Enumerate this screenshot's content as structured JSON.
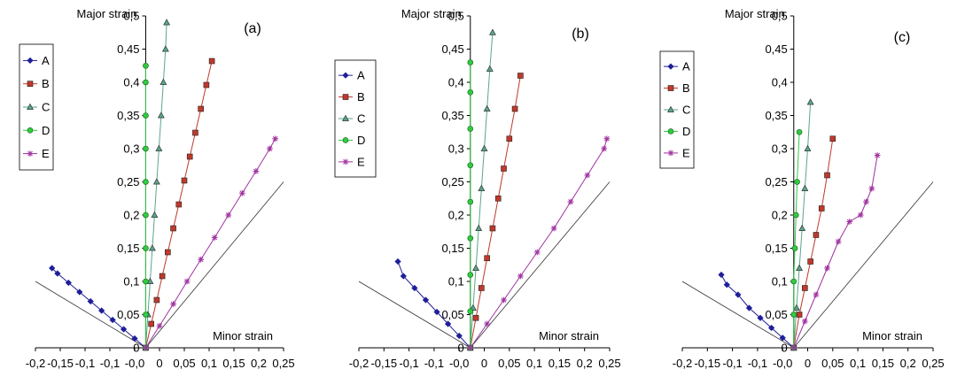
{
  "chart_data": [
    {
      "type": "line",
      "panel_label": "(a)",
      "ylabel": "Major strain",
      "xlabel": "Minor strain",
      "xlim": [
        -0.2,
        0.25
      ],
      "ylim": [
        0,
        0.5
      ],
      "x_ticks": [
        "-0,2",
        "-0,15",
        "-0,1",
        "-0,1",
        "-0,0",
        "0",
        "0,05",
        "0,1",
        "0,15",
        "0,2",
        "0,25"
      ],
      "y_ticks": [
        "0",
        "0,05",
        "0,1",
        "0,15",
        "0,2",
        "0,25",
        "0,3",
        "0,35",
        "0,4",
        "0,45",
        "0,5"
      ],
      "grid": false,
      "legend_placement": "top-left",
      "reference_lines": [
        {
          "x": [
            0,
            -0.2
          ],
          "y": [
            0,
            0.1
          ]
        },
        {
          "x": [
            0,
            0.25
          ],
          "y": [
            0,
            0.25
          ]
        }
      ],
      "series": [
        {
          "name": "A",
          "marker": "diamond",
          "color": "#1f1f9a",
          "x": [
            0,
            -0.02,
            -0.04,
            -0.06,
            -0.08,
            -0.1,
            -0.12,
            -0.14,
            -0.16,
            -0.17
          ],
          "y": [
            0,
            0.014,
            0.028,
            0.042,
            0.056,
            0.07,
            0.084,
            0.098,
            0.112,
            0.12
          ]
        },
        {
          "name": "B",
          "marker": "square",
          "color": "#c0392b",
          "x": [
            0,
            0.01,
            0.02,
            0.03,
            0.04,
            0.05,
            0.06,
            0.07,
            0.08,
            0.09,
            0.1,
            0.11,
            0.12
          ],
          "y": [
            0,
            0.036,
            0.072,
            0.108,
            0.144,
            0.18,
            0.216,
            0.252,
            0.288,
            0.324,
            0.36,
            0.396,
            0.432
          ]
        },
        {
          "name": "C",
          "marker": "triangle",
          "color": "#5aa58a",
          "x": [
            0,
            0.004,
            0.008,
            0.012,
            0.016,
            0.02,
            0.024,
            0.028,
            0.032,
            0.036,
            0.038
          ],
          "y": [
            0,
            0.05,
            0.1,
            0.15,
            0.2,
            0.25,
            0.3,
            0.35,
            0.4,
            0.45,
            0.49
          ]
        },
        {
          "name": "D",
          "marker": "circle",
          "color": "#2ecc40",
          "x": [
            0,
            0,
            0,
            0,
            0,
            0,
            0,
            0,
            0,
            0
          ],
          "y": [
            0,
            0.05,
            0.1,
            0.15,
            0.2,
            0.25,
            0.3,
            0.35,
            0.4,
            0.425
          ]
        },
        {
          "name": "E",
          "marker": "star",
          "color": "#a032a0",
          "x": [
            0,
            0.025,
            0.05,
            0.075,
            0.1,
            0.125,
            0.15,
            0.175,
            0.2,
            0.225,
            0.235
          ],
          "y": [
            0,
            0.033,
            0.066,
            0.1,
            0.133,
            0.166,
            0.2,
            0.233,
            0.266,
            0.3,
            0.315
          ]
        }
      ]
    },
    {
      "type": "line",
      "panel_label": "(b)",
      "ylabel": "Major strain",
      "xlabel": "Minor strain",
      "xlim": [
        -0.2,
        0.25
      ],
      "ylim": [
        0,
        0.5
      ],
      "x_ticks": [
        "-0,2",
        "-0,15",
        "-0,1",
        "-0,1",
        "-0,0",
        "0",
        "0,05",
        "0,1",
        "0,15",
        "0,2",
        "0,25"
      ],
      "y_ticks": [
        "0",
        "0,05",
        "0,1",
        "0,15",
        "0,2",
        "0,25",
        "0,3",
        "0,35",
        "0,4",
        "0,45",
        "0,5"
      ],
      "grid": false,
      "legend_placement": "top-left",
      "reference_lines": [
        {
          "x": [
            0,
            -0.2
          ],
          "y": [
            0,
            0.1
          ]
        },
        {
          "x": [
            0,
            0.25
          ],
          "y": [
            0,
            0.25
          ]
        }
      ],
      "series": [
        {
          "name": "A",
          "marker": "diamond",
          "color": "#1f1f9a",
          "x": [
            0,
            -0.02,
            -0.04,
            -0.06,
            -0.08,
            -0.1,
            -0.12,
            -0.13
          ],
          "y": [
            0,
            0.018,
            0.036,
            0.054,
            0.072,
            0.09,
            0.108,
            0.13
          ]
        },
        {
          "name": "B",
          "marker": "square",
          "color": "#c0392b",
          "x": [
            0,
            0.01,
            0.02,
            0.03,
            0.04,
            0.05,
            0.06,
            0.07,
            0.08,
            0.09
          ],
          "y": [
            0,
            0.045,
            0.09,
            0.135,
            0.18,
            0.225,
            0.27,
            0.315,
            0.36,
            0.41
          ]
        },
        {
          "name": "C",
          "marker": "triangle",
          "color": "#5aa58a",
          "x": [
            0,
            0.005,
            0.01,
            0.015,
            0.02,
            0.025,
            0.03,
            0.035,
            0.04
          ],
          "y": [
            0,
            0.06,
            0.12,
            0.18,
            0.24,
            0.3,
            0.36,
            0.42,
            0.475
          ]
        },
        {
          "name": "D",
          "marker": "circle",
          "color": "#2ecc40",
          "x": [
            0,
            0,
            0,
            0,
            0,
            0,
            0,
            0,
            0
          ],
          "y": [
            0,
            0.055,
            0.11,
            0.165,
            0.22,
            0.275,
            0.33,
            0.385,
            0.43
          ]
        },
        {
          "name": "E",
          "marker": "star",
          "color": "#a032a0",
          "x": [
            0,
            0.03,
            0.06,
            0.09,
            0.12,
            0.15,
            0.18,
            0.21,
            0.24,
            0.245
          ],
          "y": [
            0,
            0.036,
            0.072,
            0.108,
            0.144,
            0.18,
            0.22,
            0.26,
            0.3,
            0.315
          ]
        }
      ]
    },
    {
      "type": "line",
      "panel_label": "(c)",
      "ylabel": "Major strain",
      "xlabel": "Minor strain",
      "xlim": [
        -0.2,
        0.25
      ],
      "ylim": [
        0,
        0.5
      ],
      "x_ticks": [
        "-0,2",
        "-0,15",
        "-0,1",
        "-0,1",
        "-0,0",
        "0",
        "0,05",
        "0,1",
        "0,15",
        "0,2",
        "0,25"
      ],
      "y_ticks": [
        "0",
        "0,05",
        "0,1",
        "0,15",
        "0,2",
        "0,25",
        "0,3",
        "0,35",
        "0,4",
        "0,45",
        "0,5"
      ],
      "grid": false,
      "legend_placement": "top-left",
      "reference_lines": [
        {
          "x": [
            0,
            -0.2
          ],
          "y": [
            0,
            0.1
          ]
        },
        {
          "x": [
            0,
            0.25
          ],
          "y": [
            0,
            0.25
          ]
        }
      ],
      "series": [
        {
          "name": "A",
          "marker": "diamond",
          "color": "#1f1f9a",
          "x": [
            0,
            -0.02,
            -0.04,
            -0.06,
            -0.08,
            -0.1,
            -0.12,
            -0.13
          ],
          "y": [
            0,
            0.015,
            0.03,
            0.045,
            0.06,
            0.08,
            0.095,
            0.11
          ]
        },
        {
          "name": "B",
          "marker": "square",
          "color": "#c0392b",
          "x": [
            0,
            0.01,
            0.02,
            0.03,
            0.04,
            0.05,
            0.06,
            0.07
          ],
          "y": [
            0,
            0.05,
            0.09,
            0.13,
            0.17,
            0.21,
            0.26,
            0.315
          ]
        },
        {
          "name": "C",
          "marker": "triangle",
          "color": "#5aa58a",
          "x": [
            0,
            0.005,
            0.01,
            0.015,
            0.02,
            0.025,
            0.03
          ],
          "y": [
            0,
            0.06,
            0.12,
            0.18,
            0.24,
            0.3,
            0.37
          ]
        },
        {
          "name": "D",
          "marker": "circle",
          "color": "#2ecc40",
          "x": [
            0,
            0,
            0,
            0.002,
            0.004,
            0.006,
            0.01
          ],
          "y": [
            0,
            0.05,
            0.1,
            0.15,
            0.2,
            0.25,
            0.325
          ]
        },
        {
          "name": "E",
          "marker": "star",
          "color": "#a032a0",
          "x": [
            0,
            0.02,
            0.04,
            0.06,
            0.08,
            0.1,
            0.12,
            0.13,
            0.14,
            0.15
          ],
          "y": [
            0,
            0.04,
            0.08,
            0.12,
            0.16,
            0.19,
            0.2,
            0.22,
            0.24,
            0.29
          ]
        }
      ]
    }
  ]
}
